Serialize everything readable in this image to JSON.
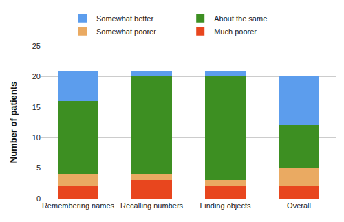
{
  "chart_data": {
    "type": "bar",
    "y_label": "Number of patients",
    "categories": [
      "Remembering names",
      "Recalling numbers",
      "Finding objects",
      "Overall"
    ],
    "series": [
      {
        "name": "Much poorer",
        "color": "#e8461e",
        "values": [
          2,
          3,
          2,
          2
        ]
      },
      {
        "name": "Somewhat poorer",
        "color": "#eaaa62",
        "values": [
          2,
          1,
          1,
          3
        ]
      },
      {
        "name": "About the same",
        "color": "#3d8f22",
        "values": [
          12,
          16,
          17,
          7
        ]
      },
      {
        "name": "Somewhat better",
        "color": "#5c9ded",
        "values": [
          5,
          1,
          1,
          8
        ]
      }
    ],
    "stacked": true,
    "ylim": [
      0,
      25
    ],
    "yticks": [
      0,
      5,
      10,
      15,
      20,
      25
    ],
    "grid": true,
    "legend": "top"
  }
}
